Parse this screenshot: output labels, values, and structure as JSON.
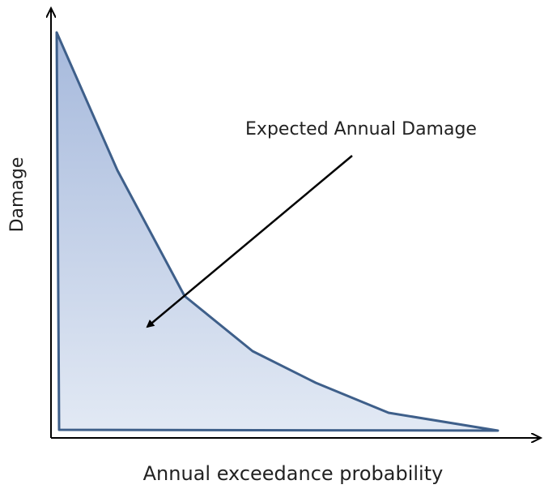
{
  "annotation": "Expected Annual Damage",
  "y_axis": {
    "label": "Damage"
  },
  "x_axis": {
    "label": "Annual exceedance probability"
  }
}
